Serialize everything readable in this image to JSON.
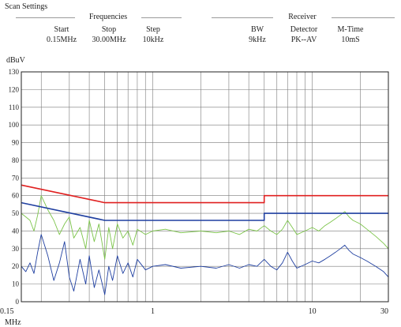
{
  "settings": {
    "title": "Scan Settings",
    "frequencies": {
      "label": "Frequencies",
      "start_label": "Start",
      "start_value": "0.15MHz",
      "stop_label": "Stop",
      "stop_value": "30.00MHz",
      "step_label": "Step",
      "step_value": "10kHz"
    },
    "receiver": {
      "label": "Receiver",
      "bw_label": "BW",
      "bw_value": "9kHz",
      "detector_label": "Detector",
      "detector_value": "PK--AV",
      "mtime_label": "M-Time",
      "mtime_value": "10mS"
    }
  },
  "chart_data": {
    "type": "line",
    "ylabel": "dBuV",
    "xlabel": "MHz",
    "x_scale": "log",
    "xlim": [
      0.15,
      30
    ],
    "ylim": [
      0,
      130
    ],
    "y_ticks": [
      0,
      10,
      20,
      30,
      40,
      50,
      60,
      70,
      80,
      90,
      100,
      110,
      120,
      130
    ],
    "x_tick_labels": [
      {
        "value": 0.15,
        "label": "0.15"
      },
      {
        "value": 1,
        "label": "1"
      },
      {
        "value": 10,
        "label": "10"
      },
      {
        "value": 30,
        "label": "30"
      }
    ],
    "x_gridlines": [
      0.15,
      0.2,
      0.3,
      0.4,
      0.5,
      0.6,
      0.7,
      0.8,
      0.9,
      1,
      2,
      3,
      4,
      5,
      6,
      7,
      8,
      9,
      10,
      20,
      30
    ],
    "grid": true,
    "series": [
      {
        "kind": "limit",
        "color": "#e02020",
        "points": [
          [
            0.15,
            66
          ],
          [
            0.5,
            56
          ],
          [
            5,
            56
          ],
          [
            5,
            60
          ],
          [
            30,
            60
          ]
        ]
      },
      {
        "kind": "limit",
        "color": "#1f3fa0",
        "points": [
          [
            0.15,
            56
          ],
          [
            0.5,
            46
          ],
          [
            5,
            46
          ],
          [
            5,
            50
          ],
          [
            30,
            50
          ]
        ]
      },
      {
        "kind": "measurement",
        "color": "#7cc44a",
        "points": [
          [
            0.15,
            50
          ],
          [
            0.16,
            48
          ],
          [
            0.17,
            46
          ],
          [
            0.18,
            40
          ],
          [
            0.19,
            49
          ],
          [
            0.2,
            60
          ],
          [
            0.22,
            52
          ],
          [
            0.24,
            46
          ],
          [
            0.26,
            38
          ],
          [
            0.28,
            44
          ],
          [
            0.3,
            48
          ],
          [
            0.32,
            36
          ],
          [
            0.35,
            42
          ],
          [
            0.38,
            30
          ],
          [
            0.4,
            46
          ],
          [
            0.43,
            34
          ],
          [
            0.46,
            44
          ],
          [
            0.5,
            24
          ],
          [
            0.53,
            42
          ],
          [
            0.56,
            30
          ],
          [
            0.6,
            44
          ],
          [
            0.65,
            36
          ],
          [
            0.7,
            40
          ],
          [
            0.75,
            32
          ],
          [
            0.8,
            41
          ],
          [
            0.9,
            38
          ],
          [
            1.0,
            40
          ],
          [
            1.2,
            41
          ],
          [
            1.5,
            39
          ],
          [
            2.0,
            40
          ],
          [
            2.5,
            39
          ],
          [
            3.0,
            40
          ],
          [
            3.5,
            38
          ],
          [
            4.0,
            41
          ],
          [
            4.5,
            40
          ],
          [
            5.0,
            43
          ],
          [
            5.5,
            40
          ],
          [
            6.0,
            38
          ],
          [
            6.5,
            41
          ],
          [
            7.0,
            46
          ],
          [
            7.5,
            42
          ],
          [
            8.0,
            38
          ],
          [
            9.0,
            40
          ],
          [
            10.0,
            42
          ],
          [
            11.0,
            40
          ],
          [
            12.0,
            43
          ],
          [
            13.0,
            45
          ],
          [
            14.0,
            47
          ],
          [
            15.0,
            49
          ],
          [
            16.0,
            51
          ],
          [
            17.0,
            48
          ],
          [
            18.0,
            46
          ],
          [
            20.0,
            44
          ],
          [
            22.0,
            41
          ],
          [
            25.0,
            37
          ],
          [
            28.0,
            33
          ],
          [
            30.0,
            30
          ]
        ]
      },
      {
        "kind": "measurement",
        "color": "#1f3fa0",
        "points": [
          [
            0.15,
            20
          ],
          [
            0.16,
            17
          ],
          [
            0.17,
            22
          ],
          [
            0.18,
            16
          ],
          [
            0.19,
            28
          ],
          [
            0.2,
            38
          ],
          [
            0.22,
            26
          ],
          [
            0.24,
            12
          ],
          [
            0.26,
            22
          ],
          [
            0.28,
            34
          ],
          [
            0.3,
            14
          ],
          [
            0.32,
            6
          ],
          [
            0.35,
            24
          ],
          [
            0.38,
            10
          ],
          [
            0.4,
            26
          ],
          [
            0.43,
            8
          ],
          [
            0.46,
            18
          ],
          [
            0.5,
            4
          ],
          [
            0.53,
            20
          ],
          [
            0.56,
            12
          ],
          [
            0.6,
            26
          ],
          [
            0.65,
            16
          ],
          [
            0.7,
            22
          ],
          [
            0.75,
            14
          ],
          [
            0.8,
            24
          ],
          [
            0.9,
            18
          ],
          [
            1.0,
            20
          ],
          [
            1.2,
            21
          ],
          [
            1.5,
            19
          ],
          [
            2.0,
            20
          ],
          [
            2.5,
            19
          ],
          [
            3.0,
            21
          ],
          [
            3.5,
            19
          ],
          [
            4.0,
            21
          ],
          [
            4.5,
            20
          ],
          [
            5.0,
            24
          ],
          [
            5.5,
            20
          ],
          [
            6.0,
            18
          ],
          [
            6.5,
            22
          ],
          [
            7.0,
            28
          ],
          [
            7.5,
            23
          ],
          [
            8.0,
            19
          ],
          [
            9.0,
            21
          ],
          [
            10.0,
            23
          ],
          [
            11.0,
            22
          ],
          [
            12.0,
            24
          ],
          [
            13.0,
            26
          ],
          [
            14.0,
            28
          ],
          [
            15.0,
            30
          ],
          [
            16.0,
            32
          ],
          [
            17.0,
            29
          ],
          [
            18.0,
            27
          ],
          [
            20.0,
            25
          ],
          [
            22.0,
            23
          ],
          [
            25.0,
            20
          ],
          [
            28.0,
            17
          ],
          [
            30.0,
            14
          ]
        ]
      }
    ]
  }
}
